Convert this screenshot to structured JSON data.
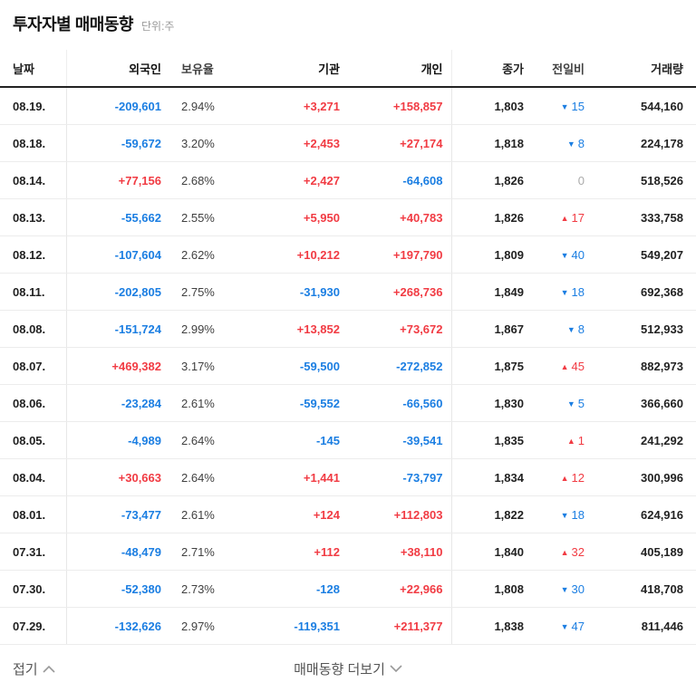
{
  "title": {
    "text": "투자자별 매매동향",
    "unit": "단위:주"
  },
  "colors": {
    "rise": "#f13b43",
    "fall": "#1b7ee2",
    "flat": "#aaaaaa"
  },
  "table": {
    "columns": [
      "날짜",
      "외국인",
      "보유율",
      "기관",
      "개인",
      "종가",
      "전일비",
      "거래량"
    ],
    "rows": [
      {
        "date": "08.19.",
        "foreign": "-209,601",
        "ratio": "2.94%",
        "inst": "+3,271",
        "indiv": "+158,857",
        "close": "1,803",
        "dir": "down",
        "diff": "15",
        "volume": "544,160"
      },
      {
        "date": "08.18.",
        "foreign": "-59,672",
        "ratio": "3.20%",
        "inst": "+2,453",
        "indiv": "+27,174",
        "close": "1,818",
        "dir": "down",
        "diff": "8",
        "volume": "224,178"
      },
      {
        "date": "08.14.",
        "foreign": "+77,156",
        "ratio": "2.68%",
        "inst": "+2,427",
        "indiv": "-64,608",
        "close": "1,826",
        "dir": "flat",
        "diff": "0",
        "volume": "518,526"
      },
      {
        "date": "08.13.",
        "foreign": "-55,662",
        "ratio": "2.55%",
        "inst": "+5,950",
        "indiv": "+40,783",
        "close": "1,826",
        "dir": "up",
        "diff": "17",
        "volume": "333,758"
      },
      {
        "date": "08.12.",
        "foreign": "-107,604",
        "ratio": "2.62%",
        "inst": "+10,212",
        "indiv": "+197,790",
        "close": "1,809",
        "dir": "down",
        "diff": "40",
        "volume": "549,207"
      },
      {
        "date": "08.11.",
        "foreign": "-202,805",
        "ratio": "2.75%",
        "inst": "-31,930",
        "indiv": "+268,736",
        "close": "1,849",
        "dir": "down",
        "diff": "18",
        "volume": "692,368"
      },
      {
        "date": "08.08.",
        "foreign": "-151,724",
        "ratio": "2.99%",
        "inst": "+13,852",
        "indiv": "+73,672",
        "close": "1,867",
        "dir": "down",
        "diff": "8",
        "volume": "512,933"
      },
      {
        "date": "08.07.",
        "foreign": "+469,382",
        "ratio": "3.17%",
        "inst": "-59,500",
        "indiv": "-272,852",
        "close": "1,875",
        "dir": "up",
        "diff": "45",
        "volume": "882,973"
      },
      {
        "date": "08.06.",
        "foreign": "-23,284",
        "ratio": "2.61%",
        "inst": "-59,552",
        "indiv": "-66,560",
        "close": "1,830",
        "dir": "down",
        "diff": "5",
        "volume": "366,660"
      },
      {
        "date": "08.05.",
        "foreign": "-4,989",
        "ratio": "2.64%",
        "inst": "-145",
        "indiv": "-39,541",
        "close": "1,835",
        "dir": "up",
        "diff": "1",
        "volume": "241,292"
      },
      {
        "date": "08.04.",
        "foreign": "+30,663",
        "ratio": "2.64%",
        "inst": "+1,441",
        "indiv": "-73,797",
        "close": "1,834",
        "dir": "up",
        "diff": "12",
        "volume": "300,996"
      },
      {
        "date": "08.01.",
        "foreign": "-73,477",
        "ratio": "2.61%",
        "inst": "+124",
        "indiv": "+112,803",
        "close": "1,822",
        "dir": "down",
        "diff": "18",
        "volume": "624,916"
      },
      {
        "date": "07.31.",
        "foreign": "-48,479",
        "ratio": "2.71%",
        "inst": "+112",
        "indiv": "+38,110",
        "close": "1,840",
        "dir": "up",
        "diff": "32",
        "volume": "405,189"
      },
      {
        "date": "07.30.",
        "foreign": "-52,380",
        "ratio": "2.73%",
        "inst": "-128",
        "indiv": "+22,966",
        "close": "1,808",
        "dir": "down",
        "diff": "30",
        "volume": "418,708"
      },
      {
        "date": "07.29.",
        "foreign": "-132,626",
        "ratio": "2.97%",
        "inst": "-119,351",
        "indiv": "+211,377",
        "close": "1,838",
        "dir": "down",
        "diff": "47",
        "volume": "811,446"
      }
    ]
  },
  "icons": {
    "up_triangle": "▲",
    "down_triangle": "▼",
    "collapse_icon": "chevron-up",
    "more_icon": "chevron-down"
  },
  "footer": {
    "collapse_label": "접기",
    "more_label": "매매동향 더보기"
  }
}
